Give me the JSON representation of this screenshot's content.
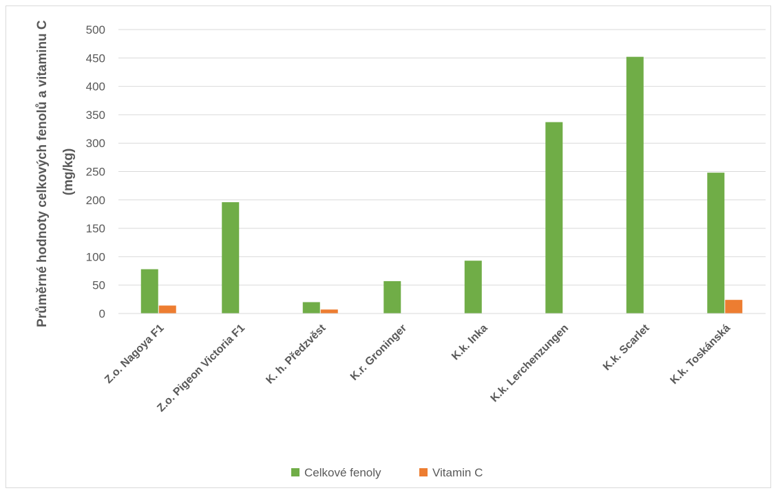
{
  "chart_data": {
    "type": "bar",
    "title": "",
    "xlabel": "",
    "ylabel_lines": [
      "Průměrné hodnoty celkových fenolů a vitaminu C",
      "(mg/kg)"
    ],
    "categories": [
      "Z.o. Nagoya F1",
      "Z.o. Pigeon Victoria F1",
      "K. h. Předzvěst",
      "K.r. Groninger",
      "K.k. Inka",
      "K.k. Lerchenzungen",
      "K.k. Scarlet",
      "K.k. Toskánská"
    ],
    "series": [
      {
        "name": "Celkové fenoly",
        "color": "#70ad47",
        "values": [
          78,
          196,
          20,
          57,
          93,
          337,
          452,
          248
        ]
      },
      {
        "name": "Vitamin C",
        "color": "#ed7d31",
        "values": [
          14,
          0,
          7,
          0,
          0,
          0,
          0,
          24
        ]
      }
    ],
    "ylim": [
      0,
      500
    ],
    "yticks": [
      "0",
      "50",
      "100",
      "150",
      "200",
      "250",
      "300",
      "350",
      "400",
      "450",
      "500"
    ],
    "grid": true,
    "legend_position": "bottom"
  }
}
